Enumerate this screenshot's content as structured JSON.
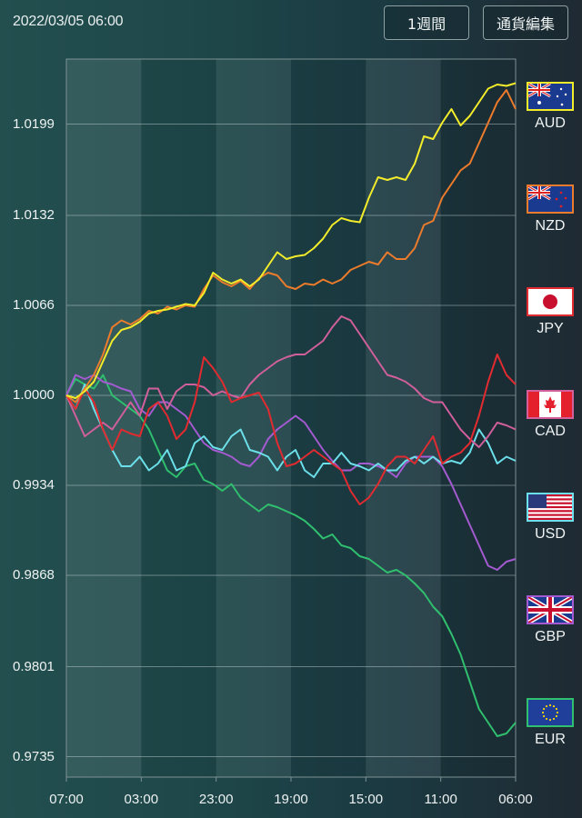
{
  "header": {
    "datetime": "2022/03/05 06:00",
    "period_button": "1週間",
    "edit_button": "通貨編集"
  },
  "chart_data": {
    "type": "line",
    "title": "",
    "xlabel": "",
    "ylabel": "",
    "x_tick_labels": [
      "07:00",
      "03:00",
      "23:00",
      "19:00",
      "15:00",
      "11:00",
      "06:00"
    ],
    "y_tick_labels": [
      "1.0199",
      "1.0132",
      "1.0066",
      "1.0000",
      "0.9934",
      "0.9868",
      "0.9801",
      "0.9735"
    ],
    "y_ticks": [
      1.0199,
      1.0132,
      1.0066,
      1.0,
      0.9934,
      0.9868,
      0.9801,
      0.9735
    ],
    "ylim": [
      0.9715,
      1.0246
    ],
    "grid": true,
    "legend_position": "right",
    "series": [
      {
        "name": "AUD",
        "color": "#f3ec2a",
        "values": [
          1.0,
          0.9998,
          1.0003,
          1.001,
          1.0025,
          1.004,
          1.0048,
          1.005,
          1.0054,
          1.006,
          1.0062,
          1.0063,
          1.0065,
          1.0067,
          1.0066,
          1.0075,
          1.009,
          1.0085,
          1.0082,
          1.0085,
          1.008,
          1.0085,
          1.0095,
          1.0105,
          1.01,
          1.0102,
          1.0103,
          1.0108,
          1.0115,
          1.0125,
          1.013,
          1.0128,
          1.0127,
          1.0145,
          1.016,
          1.0158,
          1.016,
          1.0158,
          1.017,
          1.019,
          1.0188,
          1.02,
          1.021,
          1.0198,
          1.0205,
          1.0215,
          1.0225,
          1.0228,
          1.0227,
          1.0229
        ]
      },
      {
        "name": "NZD",
        "color": "#ec7b2c",
        "values": [
          1.0,
          0.9995,
          1.0005,
          1.0015,
          1.003,
          1.005,
          1.0055,
          1.0052,
          1.0056,
          1.0062,
          1.006,
          1.0065,
          1.0063,
          1.0066,
          1.0065,
          1.0078,
          1.0088,
          1.0083,
          1.008,
          1.0084,
          1.0078,
          1.0086,
          1.009,
          1.0088,
          1.008,
          1.0078,
          1.0082,
          1.0081,
          1.0085,
          1.0082,
          1.0085,
          1.0092,
          1.0095,
          1.0098,
          1.0096,
          1.0105,
          1.01,
          1.01,
          1.0108,
          1.0125,
          1.0128,
          1.0145,
          1.0155,
          1.0165,
          1.017,
          1.0185,
          1.02,
          1.0215,
          1.0224,
          1.021
        ]
      },
      {
        "name": "JPY",
        "color": "#e12b30",
        "values": [
          1.0,
          0.999,
          1.0005,
          0.9995,
          0.9975,
          0.996,
          0.9975,
          0.9972,
          0.997,
          0.999,
          0.9995,
          0.9985,
          0.9968,
          0.9975,
          0.9995,
          1.0028,
          1.002,
          1.001,
          0.9995,
          0.9998,
          1.0,
          1.0002,
          0.999,
          0.9965,
          0.9948,
          0.995,
          0.9955,
          0.996,
          0.9955,
          0.995,
          0.9945,
          0.993,
          0.992,
          0.9925,
          0.9935,
          0.9948,
          0.9955,
          0.9955,
          0.995,
          0.996,
          0.997,
          0.995,
          0.9955,
          0.9958,
          0.9965,
          0.9985,
          1.001,
          1.003,
          1.0015,
          1.0008
        ]
      },
      {
        "name": "CAD",
        "color": "#d15f9b",
        "values": [
          1.0,
          0.9985,
          0.997,
          0.9975,
          0.998,
          0.9975,
          0.9985,
          0.9995,
          0.9985,
          1.0005,
          1.0005,
          0.999,
          1.0003,
          1.0008,
          1.0008,
          1.0006,
          1.0,
          1.0003,
          1.0,
          0.9998,
          1.0008,
          1.0015,
          1.002,
          1.0025,
          1.0028,
          1.003,
          1.003,
          1.0035,
          1.004,
          1.005,
          1.0058,
          1.0055,
          1.0045,
          1.0035,
          1.0025,
          1.0015,
          1.0013,
          1.001,
          1.0005,
          0.9998,
          0.9995,
          0.9995,
          0.9985,
          0.9975,
          0.9968,
          0.9962,
          0.997,
          0.998,
          0.9978,
          0.9975
        ]
      },
      {
        "name": "USD",
        "color": "#6ce0ea",
        "values": [
          1.0,
          0.999,
          1.0008,
          0.999,
          0.9975,
          0.996,
          0.9948,
          0.9948,
          0.9955,
          0.9945,
          0.995,
          0.996,
          0.9945,
          0.9948,
          0.9965,
          0.997,
          0.9962,
          0.996,
          0.997,
          0.9975,
          0.996,
          0.9958,
          0.9955,
          0.9945,
          0.9955,
          0.996,
          0.9945,
          0.994,
          0.995,
          0.995,
          0.9958,
          0.995,
          0.9948,
          0.9945,
          0.995,
          0.9945,
          0.9945,
          0.9952,
          0.9955,
          0.995,
          0.9955,
          0.995,
          0.9952,
          0.995,
          0.9958,
          0.9975,
          0.9965,
          0.995,
          0.9955,
          0.9952
        ]
      },
      {
        "name": "GBP",
        "color": "#a45ad0",
        "values": [
          1.0,
          1.0015,
          1.0012,
          1.0015,
          1.001,
          1.0008,
          1.0005,
          1.0003,
          0.999,
          0.9985,
          0.9995,
          0.9995,
          0.999,
          0.9985,
          0.9975,
          0.9965,
          0.996,
          0.9958,
          0.9955,
          0.995,
          0.9948,
          0.9955,
          0.9968,
          0.9975,
          0.998,
          0.9985,
          0.998,
          0.997,
          0.996,
          0.9952,
          0.9945,
          0.9945,
          0.995,
          0.995,
          0.9948,
          0.9945,
          0.994,
          0.995,
          0.9955,
          0.9955,
          0.9955,
          0.9948,
          0.9935,
          0.992,
          0.9905,
          0.989,
          0.9875,
          0.9872,
          0.9878,
          0.988
        ]
      },
      {
        "name": "EUR",
        "color": "#2fbf6e",
        "values": [
          1.0,
          1.0012,
          1.0008,
          1.0005,
          1.0015,
          1.0,
          0.9995,
          0.999,
          0.9985,
          0.9975,
          0.996,
          0.9945,
          0.994,
          0.9948,
          0.995,
          0.9938,
          0.9935,
          0.993,
          0.9935,
          0.9925,
          0.992,
          0.9915,
          0.992,
          0.9918,
          0.9915,
          0.9912,
          0.9908,
          0.9902,
          0.9895,
          0.9898,
          0.989,
          0.9888,
          0.9882,
          0.988,
          0.9875,
          0.987,
          0.9872,
          0.9868,
          0.9862,
          0.9855,
          0.9845,
          0.9838,
          0.9825,
          0.981,
          0.979,
          0.977,
          0.976,
          0.975,
          0.9752,
          0.976
        ]
      }
    ]
  },
  "legend": [
    {
      "code": "AUD",
      "flag": "australia-flag",
      "border": "#f3ec2a"
    },
    {
      "code": "NZD",
      "flag": "new-zealand-flag",
      "border": "#ec7b2c"
    },
    {
      "code": "JPY",
      "flag": "japan-flag",
      "border": "#e12b30"
    },
    {
      "code": "CAD",
      "flag": "canada-flag",
      "border": "#d15f9b"
    },
    {
      "code": "USD",
      "flag": "usa-flag",
      "border": "#6ce0ea"
    },
    {
      "code": "GBP",
      "flag": "uk-flag",
      "border": "#a45ad0"
    },
    {
      "code": "EUR",
      "flag": "eu-flag",
      "border": "#2fbf6e"
    }
  ]
}
